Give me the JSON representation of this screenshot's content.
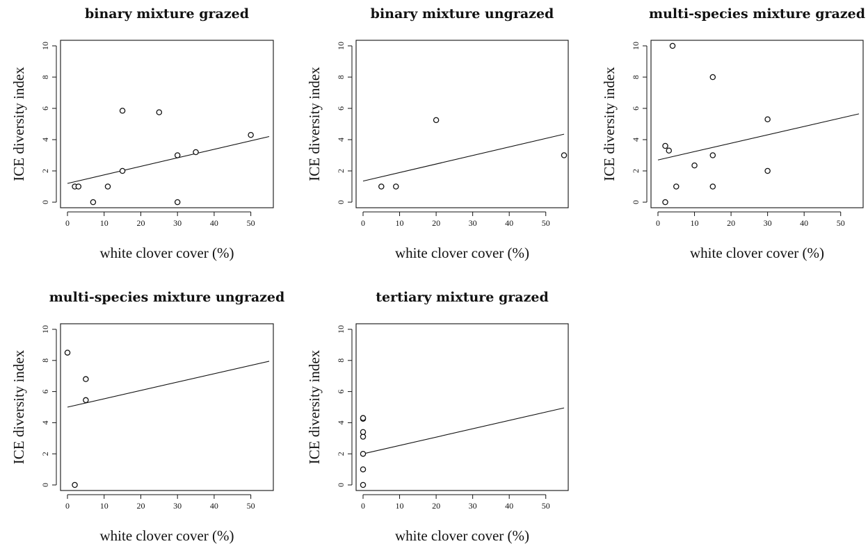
{
  "chart_data": [
    {
      "type": "scatter",
      "title": "binary mixture grazed",
      "xlabel": "white clover cover (%)",
      "ylabel": "ICE diversity index",
      "xlim": [
        0,
        55
      ],
      "ylim": [
        0,
        10
      ],
      "x_ticks": [
        0,
        10,
        20,
        30,
        40,
        50
      ],
      "y_ticks": [
        0,
        2,
        4,
        6,
        8,
        10
      ],
      "grid": false,
      "points": [
        {
          "x": 2,
          "y": 1
        },
        {
          "x": 3,
          "y": 1
        },
        {
          "x": 7,
          "y": 0
        },
        {
          "x": 11,
          "y": 1
        },
        {
          "x": 15,
          "y": 5.85
        },
        {
          "x": 15,
          "y": 2
        },
        {
          "x": 25,
          "y": 5.75
        },
        {
          "x": 30,
          "y": 3
        },
        {
          "x": 30,
          "y": 0
        },
        {
          "x": 35,
          "y": 3.2
        },
        {
          "x": 50,
          "y": 4.3
        }
      ],
      "trend_line": {
        "x": [
          0,
          55
        ],
        "y": [
          1.2,
          4.2
        ]
      }
    },
    {
      "type": "scatter",
      "title": "binary mixture ungrazed",
      "xlabel": "white clover cover (%)",
      "ylabel": "ICE diversity index",
      "xlim": [
        0,
        55
      ],
      "ylim": [
        0,
        10
      ],
      "x_ticks": [
        0,
        10,
        20,
        30,
        40,
        50
      ],
      "y_ticks": [
        0,
        2,
        4,
        6,
        8,
        10
      ],
      "grid": false,
      "points": [
        {
          "x": 5,
          "y": 1
        },
        {
          "x": 9,
          "y": 1
        },
        {
          "x": 20,
          "y": 5.25
        },
        {
          "x": 55,
          "y": 3
        }
      ],
      "trend_line": {
        "x": [
          0,
          55
        ],
        "y": [
          1.35,
          4.35
        ]
      }
    },
    {
      "type": "scatter",
      "title": "multi-species mixture grazed",
      "xlabel": "white clover cover (%)",
      "ylabel": "ICE diversity index",
      "xlim": [
        0,
        55
      ],
      "ylim": [
        0,
        10
      ],
      "x_ticks": [
        0,
        10,
        20,
        30,
        40,
        50
      ],
      "y_ticks": [
        0,
        2,
        4,
        6,
        8,
        10
      ],
      "grid": false,
      "points": [
        {
          "x": 2,
          "y": 0
        },
        {
          "x": 2,
          "y": 3.6
        },
        {
          "x": 3,
          "y": 3.3
        },
        {
          "x": 4,
          "y": 10
        },
        {
          "x": 5,
          "y": 1
        },
        {
          "x": 10,
          "y": 2.35
        },
        {
          "x": 15,
          "y": 8
        },
        {
          "x": 15,
          "y": 3
        },
        {
          "x": 15,
          "y": 1
        },
        {
          "x": 30,
          "y": 5.3
        },
        {
          "x": 30,
          "y": 2
        }
      ],
      "trend_line": {
        "x": [
          0,
          55
        ],
        "y": [
          2.7,
          5.65
        ]
      }
    },
    {
      "type": "scatter",
      "title": "multi-species mixture ungrazed",
      "xlabel": "white clover cover (%)",
      "ylabel": "ICE diversity index",
      "xlim": [
        0,
        55
      ],
      "ylim": [
        0,
        10
      ],
      "x_ticks": [
        0,
        10,
        20,
        30,
        40,
        50
      ],
      "y_ticks": [
        0,
        2,
        4,
        6,
        8,
        10
      ],
      "grid": false,
      "points": [
        {
          "x": 0,
          "y": 8.5
        },
        {
          "x": 2,
          "y": 0
        },
        {
          "x": 5,
          "y": 6.8
        },
        {
          "x": 5,
          "y": 5.45
        }
      ],
      "trend_line": {
        "x": [
          0,
          55
        ],
        "y": [
          5.0,
          7.95
        ]
      }
    },
    {
      "type": "scatter",
      "title": "tertiary mixture grazed",
      "xlabel": "white clover cover (%)",
      "ylabel": "ICE diversity index",
      "xlim": [
        0,
        55
      ],
      "ylim": [
        0,
        10
      ],
      "x_ticks": [
        0,
        10,
        20,
        30,
        40,
        50
      ],
      "y_ticks": [
        0,
        2,
        4,
        6,
        8,
        10
      ],
      "grid": false,
      "points": [
        {
          "x": 0,
          "y": 0
        },
        {
          "x": 0,
          "y": 1
        },
        {
          "x": 0,
          "y": 2
        },
        {
          "x": 0,
          "y": 3.1
        },
        {
          "x": 0,
          "y": 3.4
        },
        {
          "x": 0,
          "y": 4.25
        },
        {
          "x": 0,
          "y": 4.3
        }
      ],
      "trend_line": {
        "x": [
          0,
          55
        ],
        "y": [
          2.0,
          4.95
        ]
      }
    }
  ]
}
